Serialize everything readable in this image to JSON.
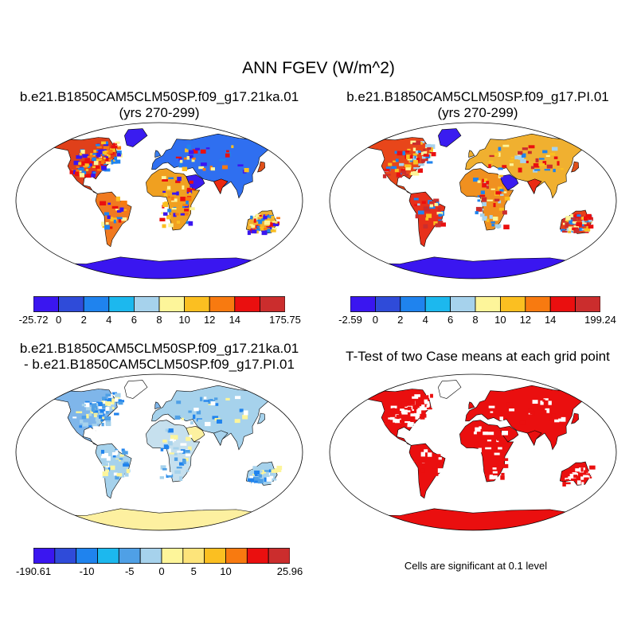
{
  "title": "ANN FGEV (W/m^2)",
  "panels": [
    {
      "title_line1": "b.e21.B1850CAM5CLM50SP.f09_g17.21ka.01",
      "title_line2": "(yrs 270-299)",
      "colorbar": {
        "colors": [
          "#3a16f0",
          "#2f4bd9",
          "#1f83ee",
          "#1cb8ee",
          "#a6d2ec",
          "#fdf59a",
          "#fbbf21",
          "#f87a10",
          "#ea0f0f",
          "#cb2d2d"
        ],
        "labels": [
          "-25.72",
          "0",
          "2",
          "4",
          "6",
          "8",
          "10",
          "12",
          "14",
          "175.75"
        ]
      }
    },
    {
      "title_line1": "b.e21.B1850CAM5CLM50SP.f09_g17.PI.01",
      "title_line2": "(yrs 270-299)",
      "colorbar": {
        "colors": [
          "#3a16f0",
          "#2f4bd9",
          "#1f83ee",
          "#1cb8ee",
          "#a6d2ec",
          "#fdf59a",
          "#fbbf21",
          "#f87a10",
          "#ea0f0f",
          "#cb2d2d"
        ],
        "labels": [
          "-2.59",
          "0",
          "2",
          "4",
          "6",
          "8",
          "10",
          "12",
          "14",
          "199.24"
        ]
      }
    },
    {
      "title_line1": "b.e21.B1850CAM5CLM50SP.f09_g17.21ka.01",
      "title_line2": "- b.e21.B1850CAM5CLM50SP.f09_g17.PI.01",
      "colorbar": {
        "colors": [
          "#3a16f0",
          "#2f4bd9",
          "#1f83ee",
          "#1cb8ee",
          "#4fa0e6",
          "#a6d2ec",
          "#fdf59a",
          "#fde47a",
          "#fbbf21",
          "#f87a10",
          "#ea0f0f",
          "#cb2d2d"
        ],
        "labels": [
          "-190.61",
          "-10",
          "-5",
          "0",
          "5",
          "10",
          "25.96"
        ],
        "label_positions": [
          0,
          2.5,
          4.5,
          6,
          7.5,
          9,
          12
        ]
      }
    },
    {
      "title_line1": "T-Test of two Case means at each grid point",
      "note": "Cells are significant at 0.1 level"
    }
  ]
}
